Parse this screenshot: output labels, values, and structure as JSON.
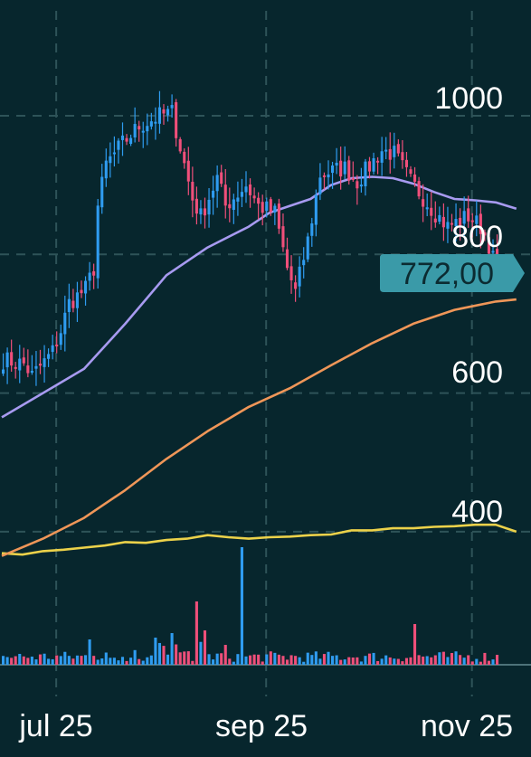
{
  "colors": {
    "background": "#07262d",
    "grid": "#2e5358",
    "up": "#2f9cf0",
    "down": "#ef4f7a",
    "ma_short": "#a79af0",
    "ma_long": "#ef9658",
    "ma_base": "#ecd24a",
    "price_tag": "#3a9aa8",
    "price_tag_text": "#0c2b31",
    "axis_text": "#ffffff"
  },
  "chart_data": {
    "type": "candlestick",
    "title": "",
    "xlabel": "",
    "ylabel": "",
    "ylim": [
      311,
      1125
    ],
    "y_ticks": [
      {
        "value": 1000,
        "label": "1000"
      },
      {
        "value": 800,
        "label": "800"
      },
      {
        "value": 600,
        "label": "600"
      },
      {
        "value": 400,
        "label": "400"
      }
    ],
    "x_ticks": [
      {
        "label": "jul 25",
        "bar_index": 13
      },
      {
        "label": "sep 25",
        "bar_index": 64
      },
      {
        "label": "nov 25",
        "bar_index": 114
      }
    ],
    "bar_count": 126,
    "last_price": {
      "value": 772,
      "label": "772,00"
    },
    "price_anchors": [
      [
        0,
        648
      ],
      [
        5,
        642
      ],
      [
        7,
        625
      ],
      [
        10,
        645
      ],
      [
        12,
        660
      ],
      [
        14,
        690
      ],
      [
        16,
        730
      ],
      [
        20,
        750
      ],
      [
        22,
        780
      ],
      [
        23,
        870
      ],
      [
        25,
        930
      ],
      [
        29,
        960
      ],
      [
        33,
        985
      ],
      [
        38,
        1000
      ],
      [
        41,
        1005
      ],
      [
        46,
        880
      ],
      [
        48,
        855
      ],
      [
        52,
        910
      ],
      [
        54,
        870
      ],
      [
        59,
        900
      ],
      [
        62,
        870
      ],
      [
        66,
        860
      ],
      [
        69,
        780
      ],
      [
        71,
        745
      ],
      [
        74,
        820
      ],
      [
        77,
        915
      ],
      [
        83,
        925
      ],
      [
        86,
        905
      ],
      [
        92,
        950
      ],
      [
        95,
        945
      ],
      [
        99,
        905
      ],
      [
        103,
        875
      ],
      [
        105,
        860
      ],
      [
        108,
        840
      ],
      [
        113,
        855
      ],
      [
        116,
        840
      ],
      [
        118,
        815
      ],
      [
        120,
        772
      ]
    ],
    "ma_short": {
      "x": [
        0,
        10,
        20,
        30,
        40,
        50,
        60,
        65,
        70,
        75,
        80,
        85,
        90,
        95,
        100,
        105,
        110,
        115,
        120,
        125
      ],
      "y": [
        565,
        600,
        635,
        700,
        770,
        810,
        840,
        860,
        870,
        880,
        900,
        910,
        912,
        910,
        902,
        890,
        880,
        878,
        875,
        866
      ]
    },
    "ma_long": {
      "x": [
        0,
        10,
        20,
        30,
        40,
        50,
        60,
        70,
        80,
        90,
        100,
        110,
        120,
        125
      ],
      "y": [
        365,
        390,
        420,
        460,
        505,
        545,
        580,
        607,
        640,
        672,
        700,
        720,
        732,
        735
      ]
    },
    "ma_base": {
      "x": [
        0,
        5,
        10,
        15,
        20,
        25,
        30,
        35,
        40,
        45,
        50,
        55,
        60,
        65,
        70,
        75,
        80,
        85,
        90,
        95,
        100,
        105,
        110,
        115,
        120,
        125
      ],
      "y": [
        369,
        367,
        372,
        374,
        377,
        380,
        385,
        384,
        388,
        390,
        395,
        392,
        390,
        392,
        393,
        395,
        396,
        402,
        402,
        405,
        405,
        407,
        408,
        410,
        410,
        400
      ]
    },
    "volume": {
      "spikes": [
        [
          58,
          130
        ],
        [
          47,
          70
        ],
        [
          41,
          35
        ],
        [
          49,
          38
        ],
        [
          21,
          28
        ],
        [
          100,
          45
        ],
        [
          37,
          30
        ],
        [
          85,
          8
        ]
      ]
    }
  },
  "labels": {
    "y_1000": "1000",
    "y_800": "800",
    "y_600": "600",
    "y_400": "400",
    "x_jul": "jul 25",
    "x_sep": "sep 25",
    "x_nov": "nov 25",
    "last_price": "772,00"
  }
}
